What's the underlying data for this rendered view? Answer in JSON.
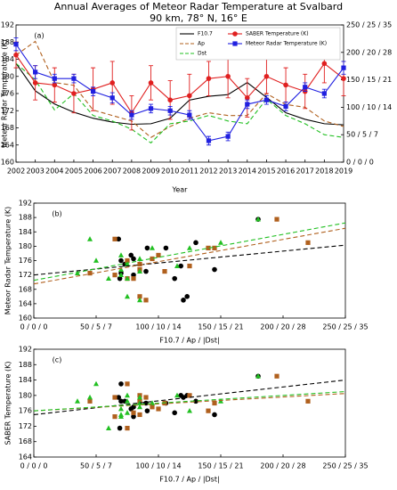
{
  "chart_data": [
    {
      "type": "line",
      "title": "Annual Averages of Meteor Radar Temperature at Svalbard",
      "subtitle": "90 km, 78° N, 16° E",
      "panel_label": "(a)",
      "xlabel": "Year",
      "ylabel": "Meteor Radar Temperature (K)",
      "x": [
        2002,
        2003,
        2004,
        2005,
        2006,
        2007,
        2008,
        2009,
        2010,
        2011,
        2012,
        2013,
        2014,
        2015,
        2016,
        2017,
        2018,
        2019
      ],
      "xlim": [
        2002,
        2019
      ],
      "xticks": [
        2002,
        2003,
        2004,
        2005,
        2006,
        2007,
        2008,
        2009,
        2010,
        2011,
        2012,
        2013,
        2014,
        2015,
        2016,
        2017,
        2018,
        2019
      ],
      "ylim": [
        160,
        192
      ],
      "yticks": [
        160,
        164,
        168,
        172,
        176,
        180,
        184,
        188,
        192
      ],
      "y2lim": [
        0,
        250
      ],
      "y2ticks": [
        {
          "value": 0,
          "label": "0 / 0 / 0"
        },
        {
          "value": 50,
          "label": "50 / 5 / 7"
        },
        {
          "value": 100,
          "label": "100 / 10 / 14"
        },
        {
          "value": 150,
          "label": "150 / 15 / 21"
        },
        {
          "value": 200,
          "label": "200 / 20 / 28"
        },
        {
          "value": 250,
          "label": "250 / 25 / 35"
        }
      ],
      "legend": "upper right",
      "series": [
        {
          "name": "F10.7",
          "color": "#000000",
          "style": "solid",
          "axis": "y2",
          "values": [
            180,
            130,
            106,
            91,
            80,
            73,
            69,
            70,
            80,
            113,
            120,
            123,
            145,
            118,
            90,
            78,
            70,
            68
          ]
        },
        {
          "name": "Ap",
          "color": "#b0601e",
          "style": "dashed",
          "axis": "y2",
          "values": [
            195,
            220,
            145,
            140,
            95,
            85,
            75,
            45,
            65,
            80,
            90,
            85,
            85,
            125,
            105,
            100,
            75,
            65
          ]
        },
        {
          "name": "Dst",
          "color": "#22c022",
          "style": "dashed",
          "axis": "y2",
          "values": [
            180,
            150,
            95,
            125,
            85,
            75,
            60,
            35,
            70,
            75,
            85,
            75,
            70,
            115,
            85,
            70,
            50,
            45
          ]
        },
        {
          "name": "SABER Temperature (K)",
          "color": "#e02020",
          "style": "solid",
          "marker": "circle",
          "values": [
            185,
            178.5,
            178,
            176,
            177,
            178.5,
            171.5,
            178.5,
            174.5,
            175.5,
            179.5,
            180,
            175,
            180,
            178,
            176.5,
            183,
            179.5
          ],
          "errors": [
            3,
            4,
            4,
            4.5,
            5,
            5,
            4,
            4,
            4.5,
            5,
            4,
            5,
            4.5,
            4,
            4,
            4,
            4.5,
            4
          ]
        },
        {
          "name": "Meteor Radar Temperature (K)",
          "color": "#2020e0",
          "style": "solid",
          "marker": "square",
          "values": [
            187.5,
            181,
            179.5,
            179.5,
            176.5,
            175,
            171,
            172.5,
            172,
            171,
            165,
            166,
            173.5,
            174.5,
            173,
            177.5,
            176,
            182
          ],
          "errors": [
            1.5,
            1.5,
            1,
            1,
            1,
            1.2,
            1,
            1,
            1,
            1,
            1,
            1,
            1,
            1,
            1,
            1,
            1,
            1.5
          ]
        }
      ]
    },
    {
      "type": "scatter",
      "panel_label": "(b)",
      "xlabel": "F10.7 / Ap / |Dst|",
      "ylabel": "Meteor Radar Temperature (K)",
      "xlim": [
        0,
        250
      ],
      "xticks": [
        {
          "value": 0,
          "label": "0 / 0 / 0"
        },
        {
          "value": 50,
          "label": "50 / 5 / 7"
        },
        {
          "value": 100,
          "label": "100 / 10 / 14"
        },
        {
          "value": 150,
          "label": "150 / 15 / 21"
        },
        {
          "value": 200,
          "label": "200 / 20 / 28"
        },
        {
          "value": 250,
          "label": "250 / 25 / 35"
        }
      ],
      "ylim": [
        160,
        192
      ],
      "yticks": [
        160,
        164,
        168,
        172,
        176,
        180,
        184,
        188,
        192
      ],
      "series": [
        {
          "color": "#000000",
          "marker": "circle",
          "x": [
            180,
            130,
            106,
            91,
            80,
            73,
            69,
            70,
            80,
            113,
            120,
            123,
            145,
            118,
            90,
            78,
            70,
            68
          ],
          "values": [
            187.5,
            181,
            179.5,
            179.5,
            176.5,
            175,
            171,
            172.5,
            172,
            171,
            165,
            166,
            173.5,
            174.5,
            173,
            177.5,
            176,
            182
          ]
        },
        {
          "color": "#b0601e",
          "marker": "square",
          "x": [
            195,
            220,
            145,
            140,
            95,
            85,
            75,
            45,
            65,
            80,
            90,
            85,
            85,
            125,
            105,
            100,
            75,
            65
          ],
          "values": [
            187.5,
            181,
            179.5,
            179.5,
            176.5,
            175,
            171,
            172.5,
            172,
            171,
            165,
            166,
            173.5,
            174.5,
            173,
            177.5,
            176,
            182
          ]
        },
        {
          "color": "#22c022",
          "marker": "triangle",
          "x": [
            180,
            150,
            95,
            125,
            85,
            75,
            60,
            35,
            70,
            75,
            85,
            75,
            70,
            115,
            85,
            70,
            50,
            45
          ],
          "values": [
            187.5,
            181,
            179.5,
            179.5,
            176.5,
            175,
            171,
            172.5,
            172,
            171,
            165,
            166,
            173.5,
            174.5,
            173,
            177.5,
            176,
            182
          ]
        },
        {
          "color": "#000000",
          "style": "dashed",
          "x": [
            0,
            250
          ],
          "values": [
            172,
            180.3
          ]
        },
        {
          "color": "#b0601e",
          "style": "dashed",
          "x": [
            0,
            250
          ],
          "values": [
            169.5,
            185
          ]
        },
        {
          "color": "#22c022",
          "style": "dashed",
          "x": [
            0,
            250
          ],
          "values": [
            170.5,
            186.5
          ]
        }
      ]
    },
    {
      "type": "scatter",
      "panel_label": "(c)",
      "xlabel": "F10.7 / Ap / |Dst|",
      "ylabel": "SABER Temperature (K)",
      "xlim": [
        0,
        250
      ],
      "xticks": [
        {
          "value": 0,
          "label": "0 / 0 / 0"
        },
        {
          "value": 50,
          "label": "50 / 5 / 7"
        },
        {
          "value": 100,
          "label": "100 / 10 / 14"
        },
        {
          "value": 150,
          "label": "150 / 15 / 21"
        },
        {
          "value": 200,
          "label": "200 / 20 / 28"
        },
        {
          "value": 250,
          "label": "250 / 25 / 35"
        }
      ],
      "ylim": [
        164,
        192
      ],
      "yticks": [
        164,
        168,
        172,
        176,
        180,
        184,
        188,
        192
      ],
      "series": [
        {
          "color": "#000000",
          "marker": "circle",
          "x": [
            180,
            130,
            106,
            91,
            80,
            73,
            69,
            70,
            80,
            113,
            120,
            123,
            145,
            118,
            90,
            78,
            70,
            68
          ],
          "values": [
            185,
            178.5,
            178,
            176,
            177,
            178.5,
            171.5,
            178.5,
            174.5,
            175.5,
            179.5,
            180,
            175,
            180,
            178,
            176.5,
            183,
            179.5
          ]
        },
        {
          "color": "#b0601e",
          "marker": "square",
          "x": [
            195,
            220,
            145,
            140,
            95,
            85,
            75,
            45,
            65,
            80,
            90,
            85,
            85,
            125,
            105,
            100,
            75,
            65
          ],
          "values": [
            185,
            178.5,
            178,
            176,
            177,
            178.5,
            171.5,
            178.5,
            174.5,
            175.5,
            179.5,
            180,
            175,
            180,
            178,
            176.5,
            183,
            179.5
          ]
        },
        {
          "color": "#22c022",
          "marker": "triangle",
          "x": [
            180,
            150,
            95,
            125,
            85,
            75,
            60,
            35,
            70,
            75,
            85,
            75,
            70,
            115,
            85,
            70,
            50,
            45
          ],
          "values": [
            185,
            178.5,
            178,
            176,
            177,
            178.5,
            171.5,
            178.5,
            174.5,
            175.5,
            179.5,
            180,
            175,
            180,
            178,
            176.5,
            183,
            179.5
          ]
        },
        {
          "color": "#000000",
          "style": "dashed",
          "x": [
            0,
            250
          ],
          "values": [
            175,
            184
          ]
        },
        {
          "color": "#b0601e",
          "style": "dashed",
          "x": [
            0,
            250
          ],
          "values": [
            176,
            180.5
          ]
        },
        {
          "color": "#22c022",
          "style": "dashed",
          "x": [
            0,
            250
          ],
          "values": [
            176,
            181
          ]
        }
      ]
    }
  ]
}
